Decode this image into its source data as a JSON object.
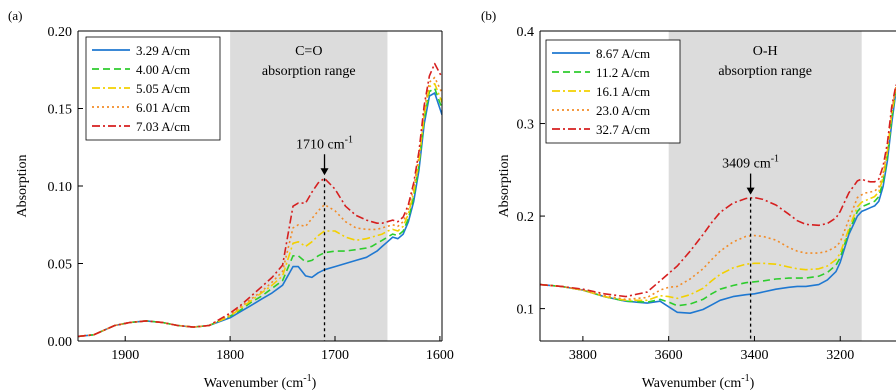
{
  "chart_data": [
    {
      "type": "line",
      "panel_label": "(a)",
      "xlabel_main": "Wavenumber (cm",
      "xlabel_sup": "-1",
      "xlabel_close": ")",
      "ylabel": "Absorption",
      "xlim": [
        1945,
        1598
      ],
      "xreversed": true,
      "ylim": [
        0,
        0.2
      ],
      "xticks": [
        1900,
        1800,
        1700,
        1600
      ],
      "yticks": [
        0.0,
        0.05,
        0.1,
        0.15,
        0.2
      ],
      "ytick_labels": [
        "0.00",
        "0.05",
        "0.10",
        "0.15",
        "0.20"
      ],
      "shade": {
        "from": 1800,
        "to": 1650,
        "label_line1": "C=O",
        "label_line2": "absorption range"
      },
      "marker": {
        "x": 1710,
        "label_main": "1710 cm",
        "label_sup": "-1"
      },
      "legend_position": "top-left",
      "series": [
        {
          "name": "3.29 A/cm",
          "color": "#1f78d1",
          "style": "solid",
          "x": [
            1945,
            1930,
            1910,
            1895,
            1880,
            1865,
            1850,
            1835,
            1820,
            1800,
            1790,
            1780,
            1770,
            1760,
            1750,
            1740,
            1735,
            1728,
            1722,
            1716,
            1710,
            1700,
            1690,
            1680,
            1670,
            1665,
            1660,
            1655,
            1650,
            1645,
            1640,
            1635,
            1630,
            1625,
            1620,
            1615,
            1610,
            1605,
            1598
          ],
          "y": [
            0.003,
            0.004,
            0.01,
            0.012,
            0.013,
            0.012,
            0.01,
            0.009,
            0.01,
            0.015,
            0.019,
            0.023,
            0.027,
            0.031,
            0.036,
            0.048,
            0.048,
            0.042,
            0.041,
            0.044,
            0.046,
            0.048,
            0.05,
            0.052,
            0.054,
            0.056,
            0.058,
            0.061,
            0.064,
            0.067,
            0.066,
            0.069,
            0.077,
            0.09,
            0.11,
            0.14,
            0.158,
            0.16,
            0.146
          ]
        },
        {
          "name": "4.00 A/cm",
          "color": "#2ecc2e",
          "style": "dash",
          "x": [
            1945,
            1930,
            1910,
            1895,
            1880,
            1865,
            1850,
            1835,
            1820,
            1800,
            1790,
            1780,
            1770,
            1760,
            1750,
            1740,
            1735,
            1728,
            1722,
            1716,
            1710,
            1700,
            1690,
            1680,
            1670,
            1665,
            1660,
            1655,
            1650,
            1645,
            1640,
            1635,
            1630,
            1625,
            1620,
            1615,
            1610,
            1605,
            1598
          ],
          "y": [
            0.003,
            0.004,
            0.01,
            0.012,
            0.013,
            0.012,
            0.01,
            0.009,
            0.01,
            0.016,
            0.02,
            0.025,
            0.029,
            0.034,
            0.039,
            0.055,
            0.055,
            0.051,
            0.052,
            0.055,
            0.057,
            0.058,
            0.058,
            0.059,
            0.06,
            0.061,
            0.063,
            0.065,
            0.067,
            0.069,
            0.068,
            0.071,
            0.079,
            0.093,
            0.113,
            0.143,
            0.161,
            0.163,
            0.15
          ]
        },
        {
          "name": "5.05 A/cm",
          "color": "#f2d000",
          "style": "dashdot",
          "x": [
            1945,
            1930,
            1910,
            1895,
            1880,
            1865,
            1850,
            1835,
            1820,
            1800,
            1790,
            1780,
            1770,
            1760,
            1750,
            1740,
            1735,
            1728,
            1722,
            1716,
            1710,
            1700,
            1690,
            1680,
            1670,
            1665,
            1660,
            1655,
            1650,
            1645,
            1640,
            1635,
            1630,
            1625,
            1620,
            1615,
            1610,
            1605,
            1598
          ],
          "y": [
            0.003,
            0.004,
            0.01,
            0.012,
            0.013,
            0.012,
            0.01,
            0.009,
            0.01,
            0.016,
            0.021,
            0.026,
            0.031,
            0.036,
            0.042,
            0.063,
            0.064,
            0.061,
            0.064,
            0.068,
            0.071,
            0.071,
            0.067,
            0.065,
            0.066,
            0.067,
            0.068,
            0.069,
            0.071,
            0.072,
            0.071,
            0.074,
            0.082,
            0.096,
            0.116,
            0.146,
            0.164,
            0.166,
            0.154
          ]
        },
        {
          "name": "6.01 A/cm",
          "color": "#f28c28",
          "style": "dot",
          "x": [
            1945,
            1930,
            1910,
            1895,
            1880,
            1865,
            1850,
            1835,
            1820,
            1800,
            1790,
            1780,
            1770,
            1760,
            1750,
            1740,
            1735,
            1728,
            1722,
            1716,
            1710,
            1700,
            1690,
            1680,
            1670,
            1665,
            1660,
            1655,
            1650,
            1645,
            1640,
            1635,
            1630,
            1625,
            1620,
            1615,
            1610,
            1605,
            1598
          ],
          "y": [
            0.003,
            0.004,
            0.01,
            0.012,
            0.013,
            0.012,
            0.01,
            0.009,
            0.01,
            0.017,
            0.022,
            0.027,
            0.032,
            0.038,
            0.045,
            0.073,
            0.075,
            0.074,
            0.079,
            0.084,
            0.088,
            0.084,
            0.077,
            0.073,
            0.072,
            0.072,
            0.072,
            0.073,
            0.074,
            0.075,
            0.074,
            0.077,
            0.085,
            0.099,
            0.119,
            0.149,
            0.167,
            0.17,
            0.16
          ]
        },
        {
          "name": "7.03 A/cm",
          "color": "#d61f1f",
          "style": "dashdot",
          "x": [
            1945,
            1930,
            1910,
            1895,
            1880,
            1865,
            1850,
            1835,
            1820,
            1800,
            1790,
            1780,
            1770,
            1760,
            1750,
            1740,
            1735,
            1728,
            1722,
            1716,
            1710,
            1700,
            1690,
            1680,
            1670,
            1665,
            1660,
            1655,
            1650,
            1645,
            1640,
            1635,
            1630,
            1625,
            1620,
            1615,
            1610,
            1605,
            1598
          ],
          "y": [
            0.003,
            0.004,
            0.01,
            0.012,
            0.013,
            0.012,
            0.01,
            0.009,
            0.01,
            0.018,
            0.023,
            0.029,
            0.035,
            0.041,
            0.049,
            0.087,
            0.089,
            0.089,
            0.096,
            0.102,
            0.105,
            0.098,
            0.087,
            0.081,
            0.078,
            0.077,
            0.076,
            0.076,
            0.077,
            0.078,
            0.077,
            0.08,
            0.088,
            0.102,
            0.122,
            0.152,
            0.171,
            0.179,
            0.17
          ]
        }
      ]
    },
    {
      "type": "line",
      "panel_label": "(b)",
      "xlabel_main": "Wavenumber (cm",
      "xlabel_sup": "-1",
      "xlabel_close": ")",
      "ylabel": "Absorption",
      "xlim": [
        3900,
        3070
      ],
      "xreversed": true,
      "ylim": [
        0.065,
        0.4
      ],
      "xticks": [
        3800,
        3600,
        3400,
        3200
      ],
      "yticks": [
        0.1,
        0.2,
        0.3,
        0.4
      ],
      "ytick_labels": [
        "0.1",
        "0.2",
        "0.3",
        "0.4"
      ],
      "shade": {
        "from": 3600,
        "to": 3150,
        "label_line1": "O-H",
        "label_line2": "absorption range"
      },
      "marker": {
        "x": 3409,
        "label_main": "3409 cm",
        "label_sup": "-1"
      },
      "legend_position": "top-left",
      "series": [
        {
          "name": "8.67 A/cm",
          "color": "#1f78d1",
          "style": "solid",
          "x": [
            3900,
            3850,
            3800,
            3750,
            3700,
            3650,
            3620,
            3600,
            3580,
            3550,
            3520,
            3500,
            3480,
            3450,
            3420,
            3400,
            3380,
            3350,
            3320,
            3300,
            3280,
            3250,
            3230,
            3210,
            3200,
            3180,
            3160,
            3150,
            3140,
            3130,
            3120,
            3110,
            3100,
            3090,
            3080,
            3070
          ],
          "y": [
            0.126,
            0.124,
            0.12,
            0.113,
            0.108,
            0.106,
            0.108,
            0.102,
            0.096,
            0.095,
            0.099,
            0.104,
            0.109,
            0.113,
            0.115,
            0.116,
            0.118,
            0.121,
            0.123,
            0.124,
            0.124,
            0.126,
            0.131,
            0.14,
            0.15,
            0.18,
            0.2,
            0.205,
            0.207,
            0.209,
            0.211,
            0.216,
            0.232,
            0.26,
            0.3,
            0.335
          ]
        },
        {
          "name": "11.2 A/cm",
          "color": "#2ecc2e",
          "style": "dash",
          "x": [
            3900,
            3850,
            3800,
            3750,
            3700,
            3650,
            3620,
            3600,
            3580,
            3550,
            3520,
            3500,
            3480,
            3450,
            3420,
            3400,
            3380,
            3350,
            3320,
            3300,
            3280,
            3250,
            3230,
            3210,
            3200,
            3180,
            3160,
            3150,
            3140,
            3130,
            3120,
            3110,
            3100,
            3090,
            3080,
            3070
          ],
          "y": [
            0.126,
            0.124,
            0.12,
            0.113,
            0.108,
            0.107,
            0.11,
            0.107,
            0.103,
            0.105,
            0.11,
            0.116,
            0.121,
            0.125,
            0.128,
            0.129,
            0.13,
            0.132,
            0.133,
            0.133,
            0.133,
            0.135,
            0.139,
            0.147,
            0.155,
            0.183,
            0.205,
            0.21,
            0.212,
            0.214,
            0.216,
            0.221,
            0.237,
            0.265,
            0.305,
            0.337
          ]
        },
        {
          "name": "16.1 A/cm",
          "color": "#f2d000",
          "style": "dashdot",
          "x": [
            3900,
            3850,
            3800,
            3750,
            3700,
            3650,
            3620,
            3600,
            3580,
            3550,
            3520,
            3500,
            3480,
            3450,
            3420,
            3400,
            3380,
            3350,
            3320,
            3300,
            3280,
            3250,
            3230,
            3210,
            3200,
            3180,
            3160,
            3150,
            3140,
            3130,
            3120,
            3110,
            3100,
            3090,
            3080,
            3070
          ],
          "y": [
            0.126,
            0.124,
            0.12,
            0.113,
            0.109,
            0.109,
            0.114,
            0.113,
            0.111,
            0.115,
            0.122,
            0.13,
            0.137,
            0.144,
            0.148,
            0.149,
            0.149,
            0.148,
            0.145,
            0.143,
            0.142,
            0.143,
            0.146,
            0.153,
            0.16,
            0.186,
            0.21,
            0.215,
            0.217,
            0.219,
            0.221,
            0.226,
            0.242,
            0.27,
            0.31,
            0.339
          ]
        },
        {
          "name": "23.0 A/cm",
          "color": "#f28c28",
          "style": "dot",
          "x": [
            3900,
            3850,
            3800,
            3750,
            3700,
            3650,
            3620,
            3600,
            3580,
            3550,
            3520,
            3500,
            3480,
            3450,
            3420,
            3400,
            3380,
            3350,
            3320,
            3300,
            3280,
            3250,
            3230,
            3210,
            3200,
            3180,
            3160,
            3150,
            3140,
            3130,
            3120,
            3110,
            3100,
            3090,
            3080,
            3070
          ],
          "y": [
            0.126,
            0.124,
            0.12,
            0.114,
            0.11,
            0.112,
            0.12,
            0.123,
            0.124,
            0.132,
            0.143,
            0.153,
            0.162,
            0.172,
            0.178,
            0.179,
            0.178,
            0.174,
            0.166,
            0.162,
            0.16,
            0.16,
            0.162,
            0.167,
            0.172,
            0.196,
            0.22,
            0.223,
            0.225,
            0.226,
            0.227,
            0.231,
            0.246,
            0.273,
            0.313,
            0.34
          ]
        },
        {
          "name": "32.7 A/cm",
          "color": "#d61f1f",
          "style": "dashdot",
          "x": [
            3900,
            3850,
            3800,
            3750,
            3700,
            3650,
            3620,
            3600,
            3580,
            3550,
            3520,
            3500,
            3480,
            3450,
            3420,
            3400,
            3380,
            3350,
            3320,
            3300,
            3280,
            3250,
            3230,
            3210,
            3200,
            3180,
            3160,
            3150,
            3140,
            3130,
            3120,
            3110,
            3100,
            3090,
            3080,
            3070
          ],
          "y": [
            0.126,
            0.124,
            0.121,
            0.116,
            0.113,
            0.118,
            0.13,
            0.138,
            0.146,
            0.162,
            0.18,
            0.193,
            0.204,
            0.214,
            0.219,
            0.22,
            0.218,
            0.212,
            0.202,
            0.195,
            0.191,
            0.19,
            0.192,
            0.198,
            0.205,
            0.225,
            0.238,
            0.24,
            0.238,
            0.237,
            0.237,
            0.24,
            0.254,
            0.279,
            0.318,
            0.342
          ]
        }
      ]
    }
  ]
}
